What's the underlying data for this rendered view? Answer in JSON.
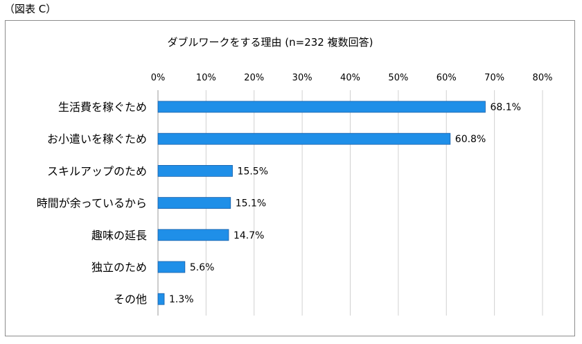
{
  "figure_label": "（図表 C）",
  "chart_data": {
    "type": "bar",
    "orientation": "horizontal",
    "title": "ダブルワークをする理由 (n=232 複数回答)",
    "categories": [
      "生活費を稼ぐため",
      "お小遣いを稼ぐため",
      "スキルアップのため",
      "時間が余っているから",
      "趣味の延長",
      "独立のため",
      "その他"
    ],
    "values": [
      68.1,
      60.8,
      15.5,
      15.1,
      14.7,
      5.6,
      1.3
    ],
    "value_labels": [
      "68.1%",
      "60.8%",
      "15.5%",
      "15.1%",
      "14.7%",
      "5.6%",
      "1.3%"
    ],
    "ticks": [
      "0%",
      "10%",
      "20%",
      "30%",
      "40%",
      "50%",
      "60%",
      "70%",
      "80%"
    ],
    "xlim": [
      0,
      80
    ],
    "xlabel": "",
    "ylabel": "",
    "grid": true,
    "bar_color": "#1f8fe8",
    "bar_edge_color": "#1a5fa8"
  }
}
